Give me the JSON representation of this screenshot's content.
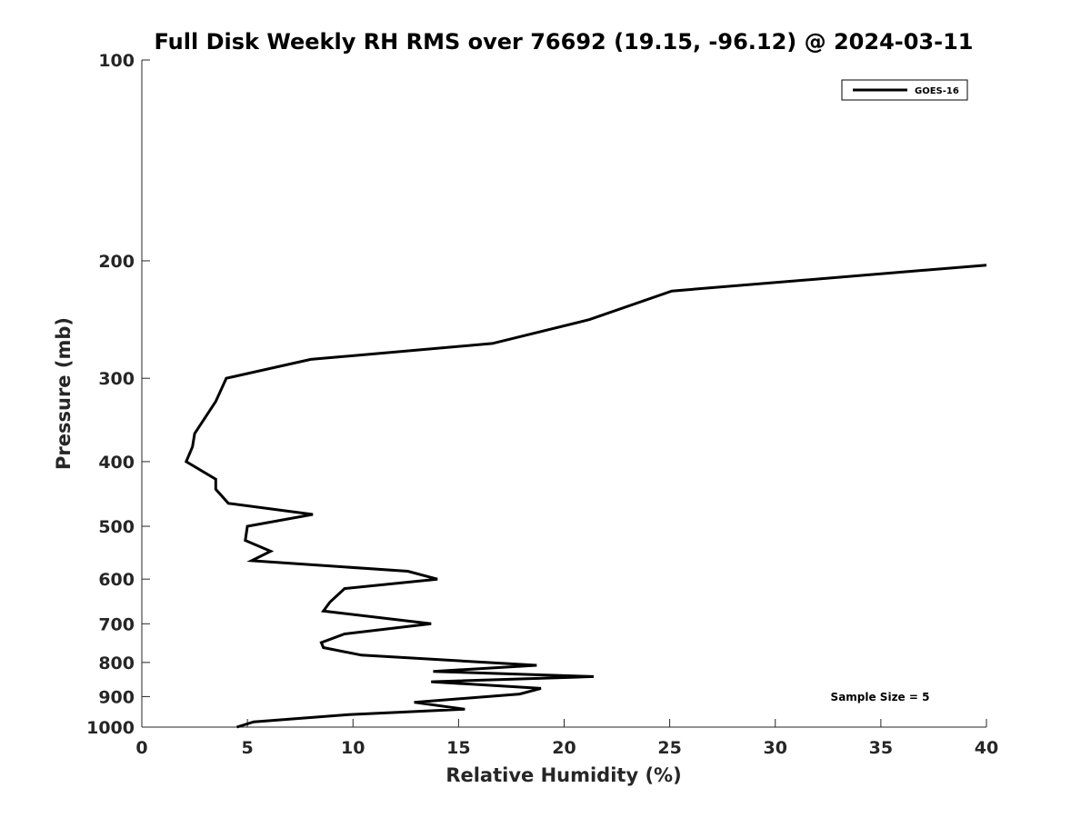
{
  "chart_data": {
    "type": "line",
    "title": "Full Disk Weekly RH RMS over 76692 (19.15, -96.12) @ 2024-03-11",
    "xlabel": "Relative Humidity (%)",
    "ylabel": "Pressure (mb)",
    "xlim": [
      0,
      40
    ],
    "ylim": [
      100,
      1000
    ],
    "y_scale": "log",
    "y_reversed": true,
    "xticks": [
      0,
      5,
      10,
      15,
      20,
      25,
      30,
      35,
      40
    ],
    "yticks": [
      100,
      200,
      300,
      400,
      500,
      600,
      700,
      800,
      900,
      1000
    ],
    "grid": false,
    "legend_position": "top-right",
    "annotation": "Sample Size = 5",
    "series": [
      {
        "name": "GOES-16",
        "color": "#000000",
        "points": [
          {
            "x": 40.0,
            "y": 203
          },
          {
            "x": 25.1,
            "y": 222
          },
          {
            "x": 21.2,
            "y": 245
          },
          {
            "x": 16.6,
            "y": 266
          },
          {
            "x": 8.0,
            "y": 281
          },
          {
            "x": 4.0,
            "y": 300
          },
          {
            "x": 3.5,
            "y": 325
          },
          {
            "x": 2.5,
            "y": 363
          },
          {
            "x": 2.4,
            "y": 380
          },
          {
            "x": 2.1,
            "y": 400
          },
          {
            "x": 3.5,
            "y": 425
          },
          {
            "x": 3.5,
            "y": 440
          },
          {
            "x": 4.1,
            "y": 462
          },
          {
            "x": 8.1,
            "y": 480
          },
          {
            "x": 5.0,
            "y": 500
          },
          {
            "x": 4.9,
            "y": 525
          },
          {
            "x": 6.1,
            "y": 545
          },
          {
            "x": 5.2,
            "y": 563
          },
          {
            "x": 12.6,
            "y": 584
          },
          {
            "x": 14.0,
            "y": 600
          },
          {
            "x": 9.6,
            "y": 620
          },
          {
            "x": 8.9,
            "y": 650
          },
          {
            "x": 8.6,
            "y": 670
          },
          {
            "x": 13.7,
            "y": 700
          },
          {
            "x": 9.6,
            "y": 725
          },
          {
            "x": 8.5,
            "y": 747
          },
          {
            "x": 8.6,
            "y": 760
          },
          {
            "x": 10.4,
            "y": 780
          },
          {
            "x": 18.7,
            "y": 808
          },
          {
            "x": 13.8,
            "y": 825
          },
          {
            "x": 21.4,
            "y": 840
          },
          {
            "x": 13.7,
            "y": 855
          },
          {
            "x": 18.9,
            "y": 875
          },
          {
            "x": 17.9,
            "y": 892
          },
          {
            "x": 12.9,
            "y": 918
          },
          {
            "x": 15.3,
            "y": 940
          },
          {
            "x": 9.8,
            "y": 958
          },
          {
            "x": 5.3,
            "y": 982
          },
          {
            "x": 4.5,
            "y": 1000
          }
        ]
      }
    ]
  }
}
